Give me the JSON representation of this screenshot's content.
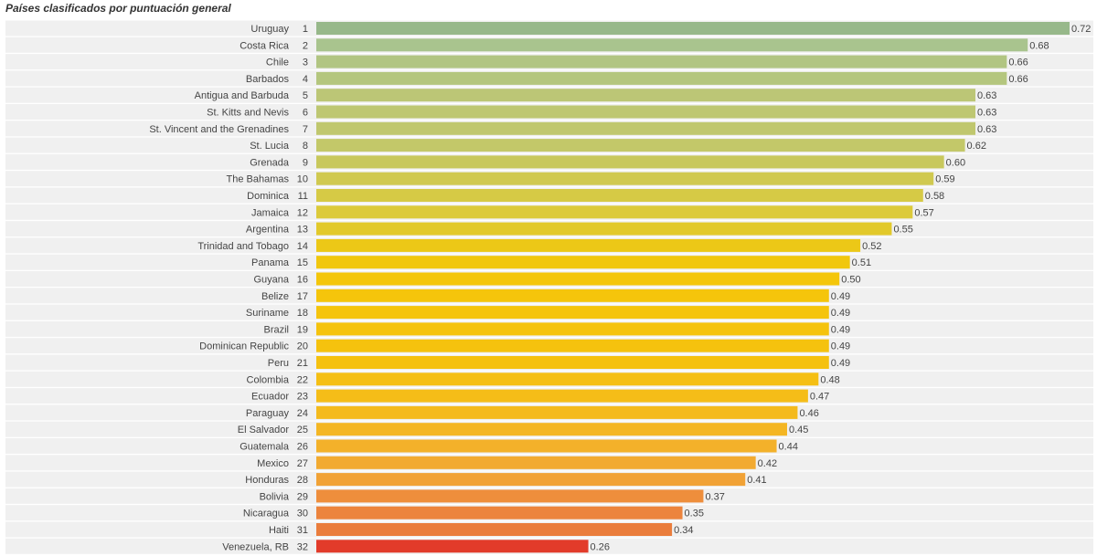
{
  "chart_data": {
    "type": "bar",
    "orientation": "horizontal",
    "title": "Países clasificados por puntuación general",
    "xlim": [
      0,
      0.72
    ],
    "rows": [
      {
        "country": "Uruguay",
        "rank": "1",
        "value": 0.72,
        "label": "0.72",
        "color": "#97b88a"
      },
      {
        "country": "Costa Rica",
        "rank": "2",
        "value": 0.68,
        "label": "0.68",
        "color": "#a9c48e"
      },
      {
        "country": "Chile",
        "rank": "3",
        "value": 0.66,
        "label": "0.66",
        "color": "#b1c582"
      },
      {
        "country": "Barbados",
        "rank": "4",
        "value": 0.66,
        "label": "0.66",
        "color": "#b4c67e"
      },
      {
        "country": "Antigua and Barbuda",
        "rank": "5",
        "value": 0.63,
        "label": "0.63",
        "color": "#bcc676"
      },
      {
        "country": "St. Kitts and Nevis",
        "rank": "6",
        "value": 0.63,
        "label": "0.63",
        "color": "#bec772"
      },
      {
        "country": "St. Vincent and the Grenadines",
        "rank": "7",
        "value": 0.63,
        "label": "0.63",
        "color": "#c0c76e"
      },
      {
        "country": "St. Lucia",
        "rank": "8",
        "value": 0.62,
        "label": "0.62",
        "color": "#c3c869"
      },
      {
        "country": "Grenada",
        "rank": "9",
        "value": 0.6,
        "label": "0.60",
        "color": "#c8c85c"
      },
      {
        "country": "The Bahamas",
        "rank": "10",
        "value": 0.59,
        "label": "0.59",
        "color": "#d0c950"
      },
      {
        "country": "Dominica",
        "rank": "11",
        "value": 0.58,
        "label": "0.58",
        "color": "#d6ca45"
      },
      {
        "country": "Jamaica",
        "rank": "12",
        "value": 0.57,
        "label": "0.57",
        "color": "#dcca3a"
      },
      {
        "country": "Argentina",
        "rank": "13",
        "value": 0.55,
        "label": "0.55",
        "color": "#e2c92b"
      },
      {
        "country": "Trinidad and Tobago",
        "rank": "14",
        "value": 0.52,
        "label": "0.52",
        "color": "#ecc817"
      },
      {
        "country": "Panama",
        "rank": "15",
        "value": 0.51,
        "label": "0.51",
        "color": "#f1c70e"
      },
      {
        "country": "Guyana",
        "rank": "16",
        "value": 0.5,
        "label": "0.50",
        "color": "#f4c60a"
      },
      {
        "country": "Belize",
        "rank": "17",
        "value": 0.49,
        "label": "0.49",
        "color": "#f5c50b"
      },
      {
        "country": "Suriname",
        "rank": "18",
        "value": 0.49,
        "label": "0.49",
        "color": "#f5c40c"
      },
      {
        "country": "Brazil",
        "rank": "19",
        "value": 0.49,
        "label": "0.49",
        "color": "#f5c30d"
      },
      {
        "country": "Dominican Republic",
        "rank": "20",
        "value": 0.49,
        "label": "0.49",
        "color": "#f5c20e"
      },
      {
        "country": "Peru",
        "rank": "21",
        "value": 0.49,
        "label": "0.49",
        "color": "#f5c10f"
      },
      {
        "country": "Colombia",
        "rank": "22",
        "value": 0.48,
        "label": "0.48",
        "color": "#f5bf13"
      },
      {
        "country": "Ecuador",
        "rank": "23",
        "value": 0.47,
        "label": "0.47",
        "color": "#f5bd18"
      },
      {
        "country": "Paraguay",
        "rank": "24",
        "value": 0.46,
        "label": "0.46",
        "color": "#f4ba1d"
      },
      {
        "country": "El Salvador",
        "rank": "25",
        "value": 0.45,
        "label": "0.45",
        "color": "#f4b623"
      },
      {
        "country": "Guatemala",
        "rank": "26",
        "value": 0.44,
        "label": "0.44",
        "color": "#f3b12a"
      },
      {
        "country": "Mexico",
        "rank": "27",
        "value": 0.42,
        "label": "0.42",
        "color": "#f2aa31"
      },
      {
        "country": "Honduras",
        "rank": "28",
        "value": 0.41,
        "label": "0.41",
        "color": "#f1a236"
      },
      {
        "country": "Bolivia",
        "rank": "29",
        "value": 0.37,
        "label": "0.37",
        "color": "#ee8e3c"
      },
      {
        "country": "Nicaragua",
        "rank": "30",
        "value": 0.35,
        "label": "0.35",
        "color": "#ec843d"
      },
      {
        "country": "Haiti",
        "rank": "31",
        "value": 0.34,
        "label": "0.34",
        "color": "#ea7d3c"
      },
      {
        "country": "Venezuela, RB",
        "rank": "32",
        "value": 0.26,
        "label": "0.26",
        "color": "#e23b2a"
      }
    ]
  }
}
